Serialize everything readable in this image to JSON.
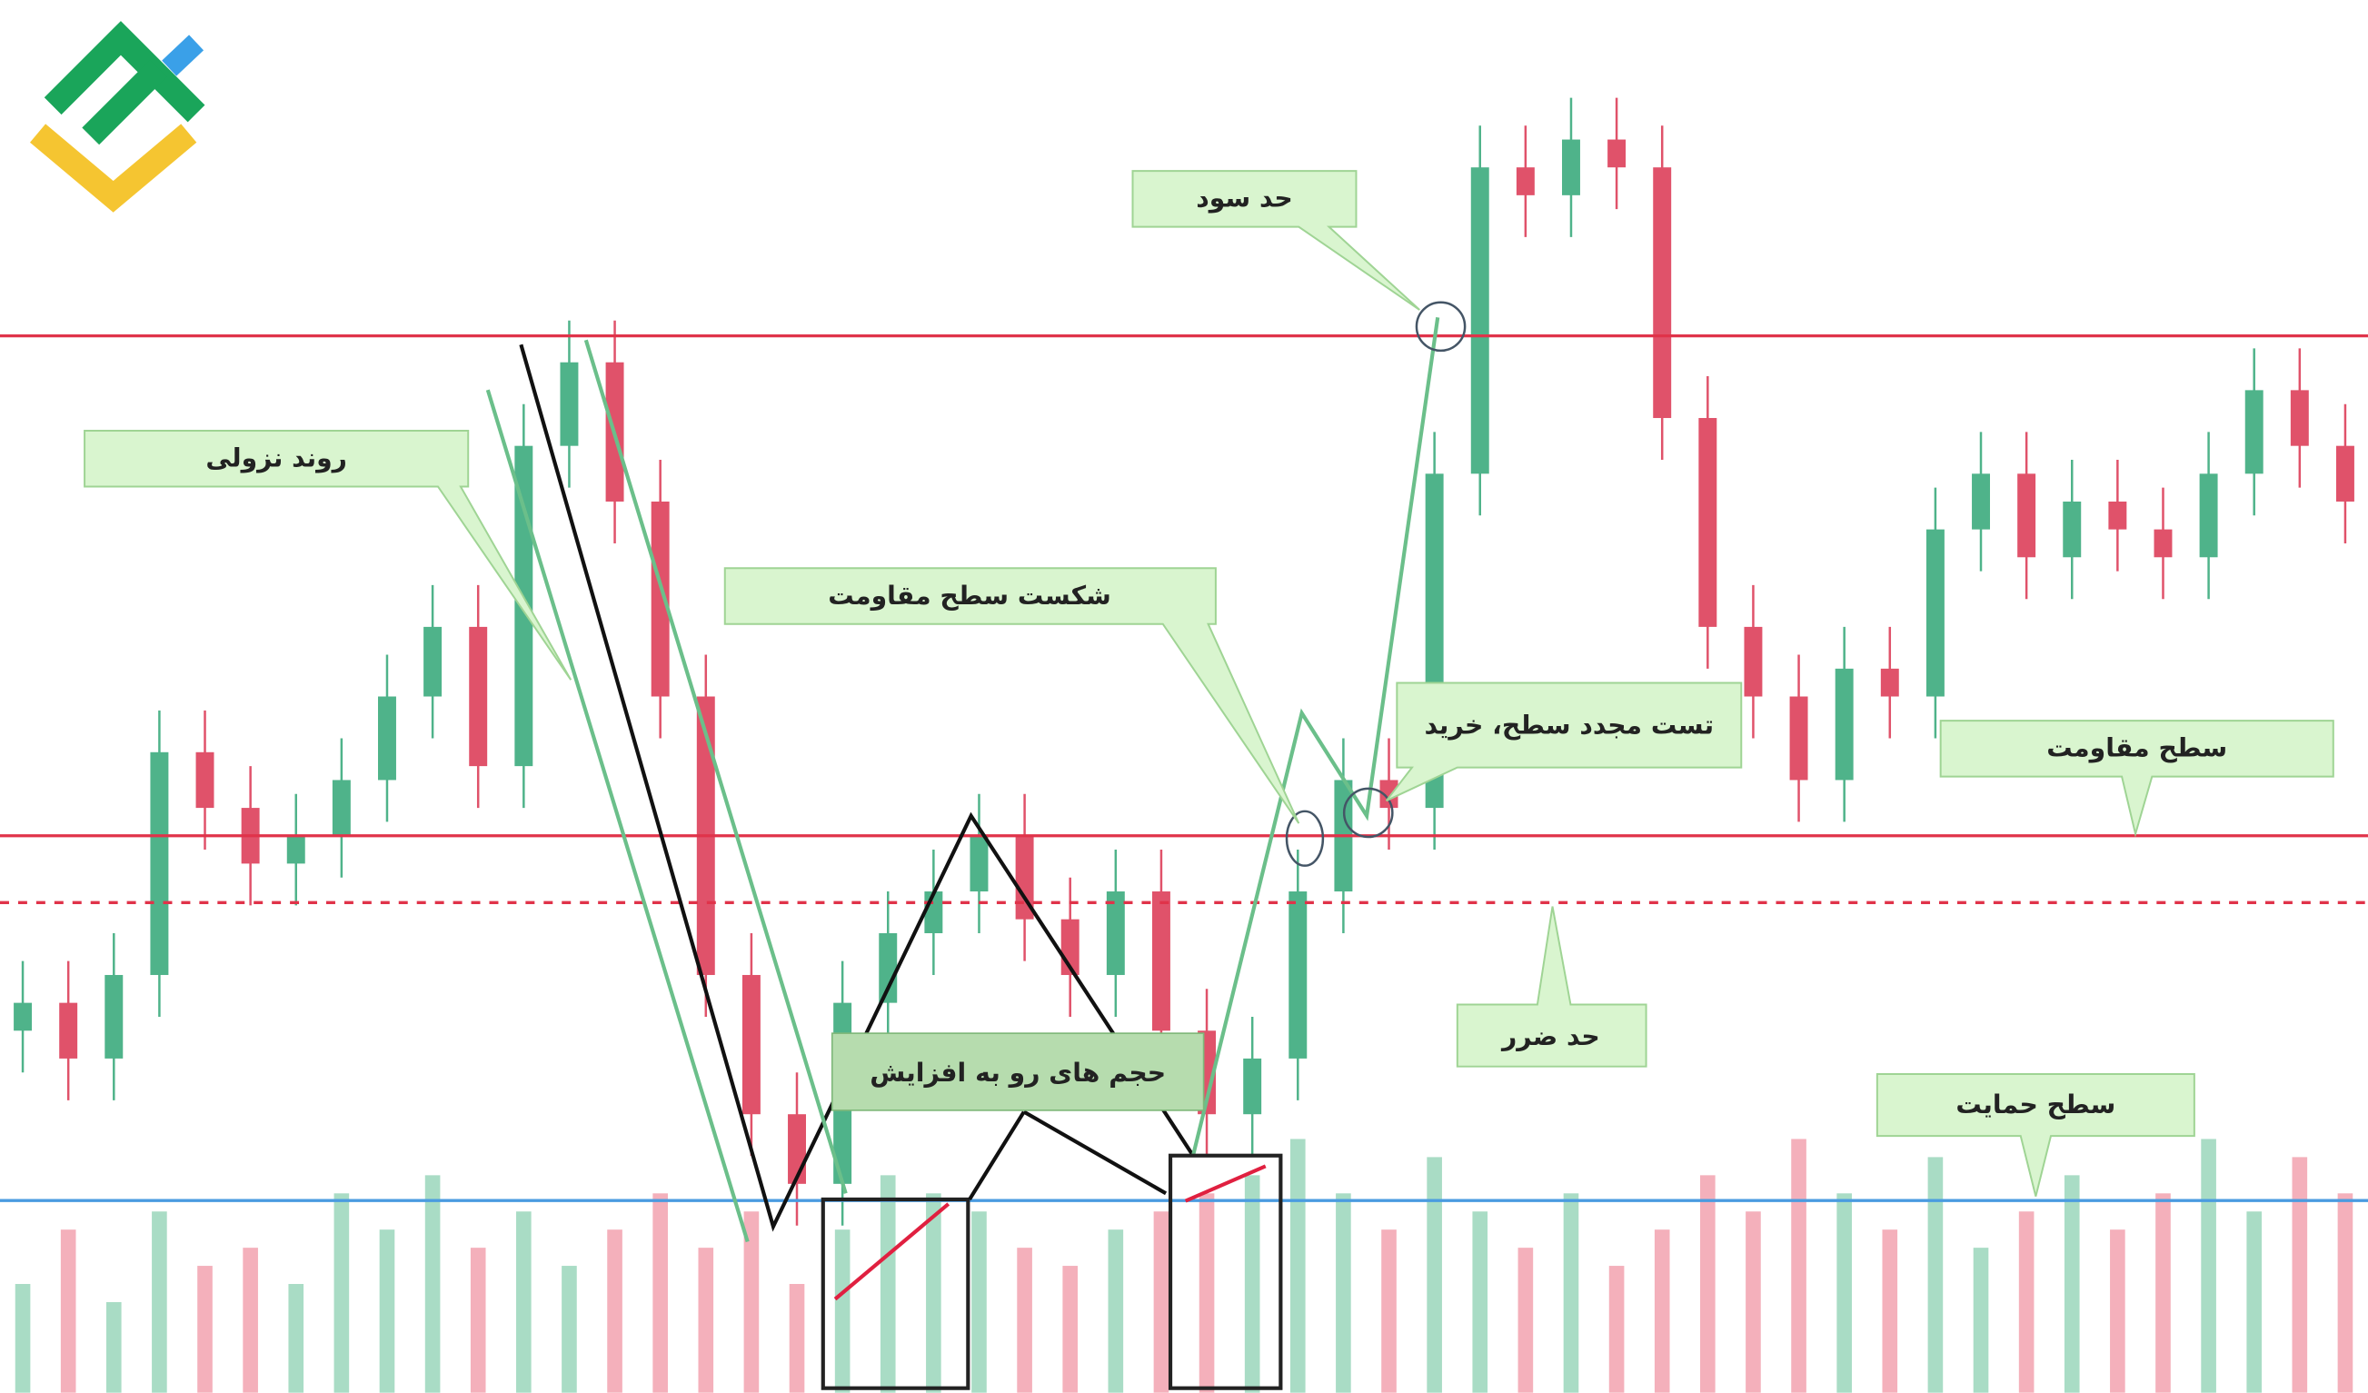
{
  "labels": {
    "take_profit": "حد سود",
    "downtrend": "روند نزولی",
    "breakout": "شکست سطح مقاومت",
    "retest": "تست مجدد سطح، خرید",
    "resistance": "سطح مقاومت",
    "stop_loss": "حد ضرر",
    "rising_volume": "حجم های رو به افزایش",
    "support": "سطح حمایت"
  },
  "chart_data": {
    "type": "candlestick",
    "open": [
      26,
      28,
      24,
      30,
      46,
      42,
      38,
      40,
      44,
      50,
      55,
      45,
      68,
      74,
      64,
      50,
      30,
      20,
      15,
      28,
      33,
      36,
      40,
      34,
      30,
      36,
      26,
      20,
      24,
      36,
      44,
      42,
      66,
      88,
      86,
      90,
      88,
      70,
      55,
      50,
      44,
      52,
      50,
      62,
      66,
      60,
      64,
      62,
      60,
      66,
      72,
      68
    ],
    "high": [
      31,
      31,
      33,
      49,
      49,
      45,
      43,
      47,
      53,
      58,
      58,
      71,
      77,
      77,
      67,
      53,
      33,
      23,
      31,
      36,
      39,
      43,
      43,
      37,
      39,
      39,
      29,
      27,
      39,
      47,
      47,
      69,
      91,
      91,
      93,
      93,
      91,
      73,
      58,
      53,
      55,
      55,
      65,
      69,
      69,
      67,
      67,
      65,
      69,
      75,
      75,
      71
    ],
    "low": [
      23,
      21,
      21,
      27,
      39,
      35,
      35,
      37,
      41,
      47,
      42,
      42,
      65,
      61,
      47,
      27,
      17,
      12,
      12,
      25,
      30,
      33,
      31,
      27,
      27,
      23,
      17,
      17,
      21,
      33,
      39,
      39,
      63,
      83,
      83,
      85,
      67,
      52,
      47,
      41,
      41,
      47,
      47,
      59,
      57,
      57,
      59,
      57,
      57,
      63,
      65,
      61
    ],
    "close": [
      28,
      24,
      30,
      46,
      42,
      38,
      40,
      44,
      50,
      55,
      45,
      68,
      74,
      64,
      50,
      30,
      20,
      15,
      28,
      33,
      36,
      40,
      34,
      30,
      36,
      26,
      20,
      24,
      36,
      44,
      42,
      66,
      88,
      86,
      90,
      88,
      70,
      55,
      50,
      44,
      52,
      50,
      62,
      66,
      60,
      64,
      62,
      60,
      66,
      72,
      68,
      64
    ],
    "volume": [
      30,
      45,
      25,
      50,
      35,
      40,
      30,
      55,
      45,
      60,
      40,
      50,
      35,
      45,
      55,
      40,
      50,
      30,
      45,
      60,
      55,
      50,
      40,
      35,
      45,
      50,
      55,
      60,
      70,
      55,
      45,
      65,
      50,
      40,
      55,
      35,
      45,
      60,
      50,
      70,
      55,
      45,
      65,
      40,
      50,
      60,
      45,
      55,
      70,
      50,
      65,
      55
    ],
    "ylim": [
      0,
      100
    ],
    "vlim": [
      0,
      100
    ],
    "up_color": "#4fb38a",
    "down_color": "#e0526a",
    "up_volume_color": "#a9dcc5",
    "down_volume_color": "#f4b0bb",
    "levels": [
      {
        "value": 75.9,
        "color": "#e0334a",
        "dashed": false
      },
      {
        "value": 40,
        "color": "#e0334a",
        "dashed": false
      },
      {
        "value": 35.2,
        "color": "#e0334a",
        "dashed": true
      },
      {
        "value": 13.8,
        "color": "#4a9be0",
        "dashed": false
      }
    ]
  }
}
